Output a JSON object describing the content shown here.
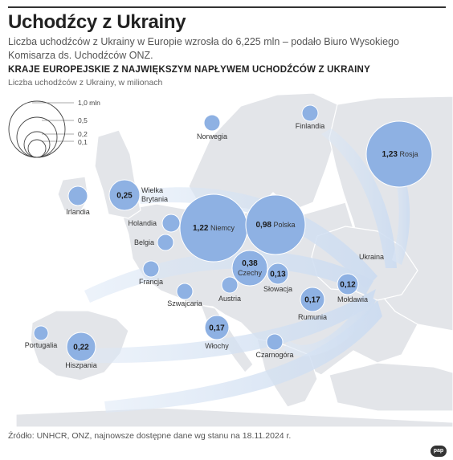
{
  "title": "Uchodźcy z Ukrainy",
  "lead": "Liczba uchodźców z Ukrainy w Europie wzrosła do 6,225 mln – podało Biuro Wysokiego Komisarza ds. Uchodźców ONZ.",
  "subtitle": "KRAJE EUROPEJSKIE Z NAJWIĘKSZYM NAPŁYWEM UCHODŹCÓW Z UKRAINY",
  "unit_note": "Liczba uchodźców z Ukrainy, w milionach",
  "legend": {
    "labels": [
      "1,0 mln",
      "0,5",
      "0,2",
      "0,1"
    ]
  },
  "origin_label": "Ukraina",
  "countries": [
    {
      "name": "Rosja",
      "value": "1,23"
    },
    {
      "name": "Niemcy",
      "value": "1,22"
    },
    {
      "name": "Polska",
      "value": "0,98"
    },
    {
      "name": "Czechy",
      "value": "0,38"
    },
    {
      "name": "Wielka Brytania",
      "value": "0,25"
    },
    {
      "name": "Hiszpania",
      "value": "0,22"
    },
    {
      "name": "Włochy",
      "value": "0,17"
    },
    {
      "name": "Rumunia",
      "value": "0,17"
    },
    {
      "name": "Słowacja",
      "value": "0,13"
    },
    {
      "name": "Mołdawia",
      "value": "0,12"
    },
    {
      "name": "Finlandia",
      "value": ""
    },
    {
      "name": "Norwegia",
      "value": ""
    },
    {
      "name": "Irlandia",
      "value": ""
    },
    {
      "name": "Holandia",
      "value": ""
    },
    {
      "name": "Belgia",
      "value": ""
    },
    {
      "name": "Francja",
      "value": ""
    },
    {
      "name": "Szwajcaria",
      "value": ""
    },
    {
      "name": "Austria",
      "value": ""
    },
    {
      "name": "Portugalia",
      "value": ""
    },
    {
      "name": "Czarnogóra",
      "value": ""
    }
  ],
  "source": "Źródło: UNHCR, ONZ, najnowsze dostępne dane wg stanu na 18.11.2024 r.",
  "logo": "pap",
  "colors": {
    "bubble": "#8eb1e3",
    "bubble_stroke": "#6f97d2",
    "land": "#e3e5e9",
    "sea": "#ffffff",
    "arrow": "#d2e0f2"
  }
}
